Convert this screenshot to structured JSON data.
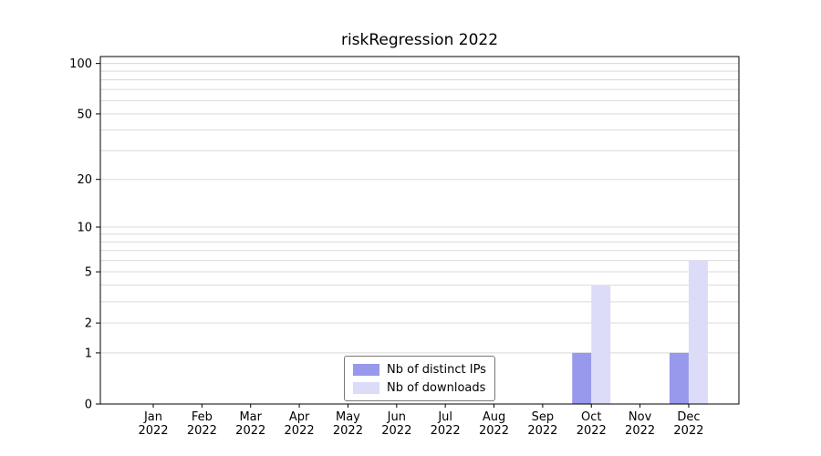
{
  "title": "riskRegression 2022",
  "colors": {
    "distinct_ips_bar": "#9898ec",
    "downloads_bar": "#dcdcf8",
    "gridline": "#d9d9d9",
    "axis": "#000000",
    "background": "#ffffff"
  },
  "legend": {
    "items": [
      {
        "label": "Nb of distinct IPs",
        "color": "#9898ec"
      },
      {
        "label": "Nb of downloads",
        "color": "#dcdcf8"
      }
    ]
  },
  "y_axis": {
    "scale": "log1p",
    "range": [
      0,
      110
    ],
    "tick_values": [
      0,
      1,
      2,
      5,
      10,
      20,
      50,
      100
    ],
    "tick_labels": [
      "0",
      "1",
      "2",
      "5",
      "10",
      "20",
      "50",
      "100"
    ],
    "gridline_values": [
      1,
      2,
      3,
      4,
      5,
      6,
      7,
      8,
      9,
      10,
      20,
      30,
      40,
      50,
      60,
      70,
      80,
      90,
      100
    ]
  },
  "x_axis": {
    "month_labels": [
      "Jan",
      "Feb",
      "Mar",
      "Apr",
      "May",
      "Jun",
      "Jul",
      "Aug",
      "Sep",
      "Oct",
      "Nov",
      "Dec"
    ],
    "year_label": "2022"
  },
  "chart_data": {
    "type": "bar",
    "title": "riskRegression 2022",
    "categories": [
      "Jan 2022",
      "Feb 2022",
      "Mar 2022",
      "Apr 2022",
      "May 2022",
      "Jun 2022",
      "Jul 2022",
      "Aug 2022",
      "Sep 2022",
      "Oct 2022",
      "Nov 2022",
      "Dec 2022"
    ],
    "series": [
      {
        "name": "Nb of distinct IPs",
        "color": "#9898ec",
        "values": [
          0,
          0,
          0,
          0,
          0,
          0,
          0,
          0,
          0,
          1,
          0,
          1
        ]
      },
      {
        "name": "Nb of downloads",
        "color": "#dcdcf8",
        "values": [
          0,
          0,
          0,
          0,
          0,
          0,
          0,
          0,
          0,
          4,
          0,
          6
        ]
      }
    ],
    "yscale": "log1p",
    "ylim": [
      0,
      110
    ],
    "yticks": [
      0,
      1,
      2,
      5,
      10,
      20,
      50,
      100
    ],
    "grid": "horizontal-log-minor",
    "legend_position": "lower-center-inside"
  }
}
